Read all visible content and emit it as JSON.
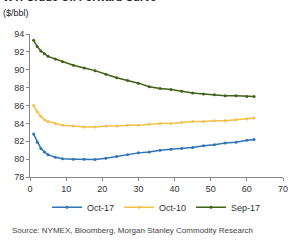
{
  "chart_data": {
    "type": "line",
    "title": "WTI Crude Oil Forward Curve",
    "subtitle": "($/bbl)",
    "source": "Source: NYMEX, Bloomberg, Morgan Stanley Commodity Research",
    "x": [
      1,
      2,
      3,
      4,
      5,
      7,
      9,
      12,
      15,
      18,
      21,
      24,
      27,
      30,
      33,
      36,
      39,
      42,
      45,
      48,
      51,
      54,
      57,
      60,
      62
    ],
    "series": [
      {
        "name": "Oct-17",
        "color": "#2f74b5",
        "values": [
          82.8,
          81.9,
          81.2,
          80.8,
          80.5,
          80.2,
          80.05,
          80.0,
          80.0,
          79.95,
          80.1,
          80.3,
          80.5,
          80.7,
          80.8,
          81.0,
          81.1,
          81.2,
          81.3,
          81.5,
          81.6,
          81.8,
          81.9,
          82.1,
          82.2
        ]
      },
      {
        "name": "Oct-10",
        "color": "#f2c14e",
        "values": [
          86.0,
          85.3,
          84.8,
          84.4,
          84.2,
          84.0,
          83.8,
          83.7,
          83.6,
          83.6,
          83.7,
          83.7,
          83.8,
          83.8,
          83.9,
          84.0,
          84.0,
          84.1,
          84.2,
          84.2,
          84.3,
          84.3,
          84.4,
          84.5,
          84.6
        ]
      },
      {
        "name": "Sep-17",
        "color": "#3f6219",
        "values": [
          93.3,
          92.6,
          92.1,
          91.8,
          91.5,
          91.2,
          90.9,
          90.5,
          90.2,
          89.9,
          89.5,
          89.1,
          88.8,
          88.5,
          88.1,
          87.9,
          87.8,
          87.6,
          87.4,
          87.3,
          87.2,
          87.1,
          87.1,
          87.0,
          87.0
        ]
      }
    ],
    "xlim": [
      0,
      70
    ],
    "xticks": [
      0,
      10,
      20,
      30,
      40,
      50,
      60,
      70
    ],
    "ylim": [
      78,
      94
    ],
    "yticks": [
      78,
      80,
      82,
      84,
      86,
      88,
      90,
      92,
      94
    ],
    "grid": false,
    "legend": "bottom",
    "marker": "circle"
  }
}
